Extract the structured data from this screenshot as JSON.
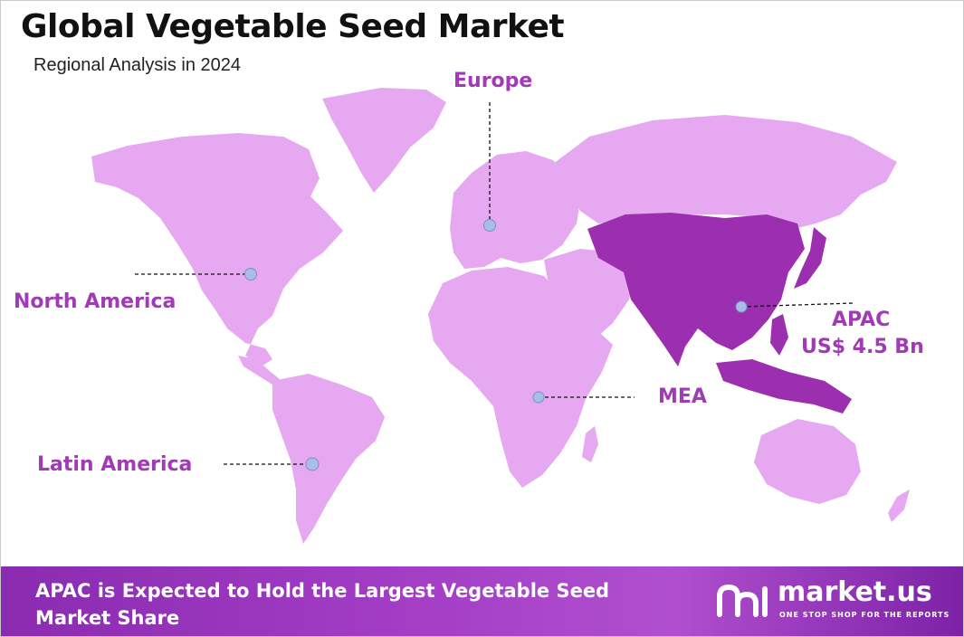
{
  "title": "Global Vegetable Seed Market",
  "subtitle": "Regional Analysis in 2024",
  "regions": {
    "north_america": {
      "label": "North America"
    },
    "europe": {
      "label": "Europe"
    },
    "apac": {
      "label": "APAC",
      "value": "US$ 4.5 Bn"
    },
    "mea": {
      "label": "MEA"
    },
    "latin_america": {
      "label": "Latin America"
    }
  },
  "colors": {
    "land": "#e6a8f0",
    "highlight": "#9c2fb0",
    "label": "#a13bb5",
    "marker": "#a9bde6",
    "footer": "#9a36c0"
  },
  "footer": {
    "headline": "APAC is Expected to Hold the Largest Vegetable Seed Market Share"
  },
  "brand": {
    "name": "market.us",
    "tagline": "ONE STOP SHOP FOR THE REPORTS",
    "logo_icon": "market-us-logo-icon"
  }
}
